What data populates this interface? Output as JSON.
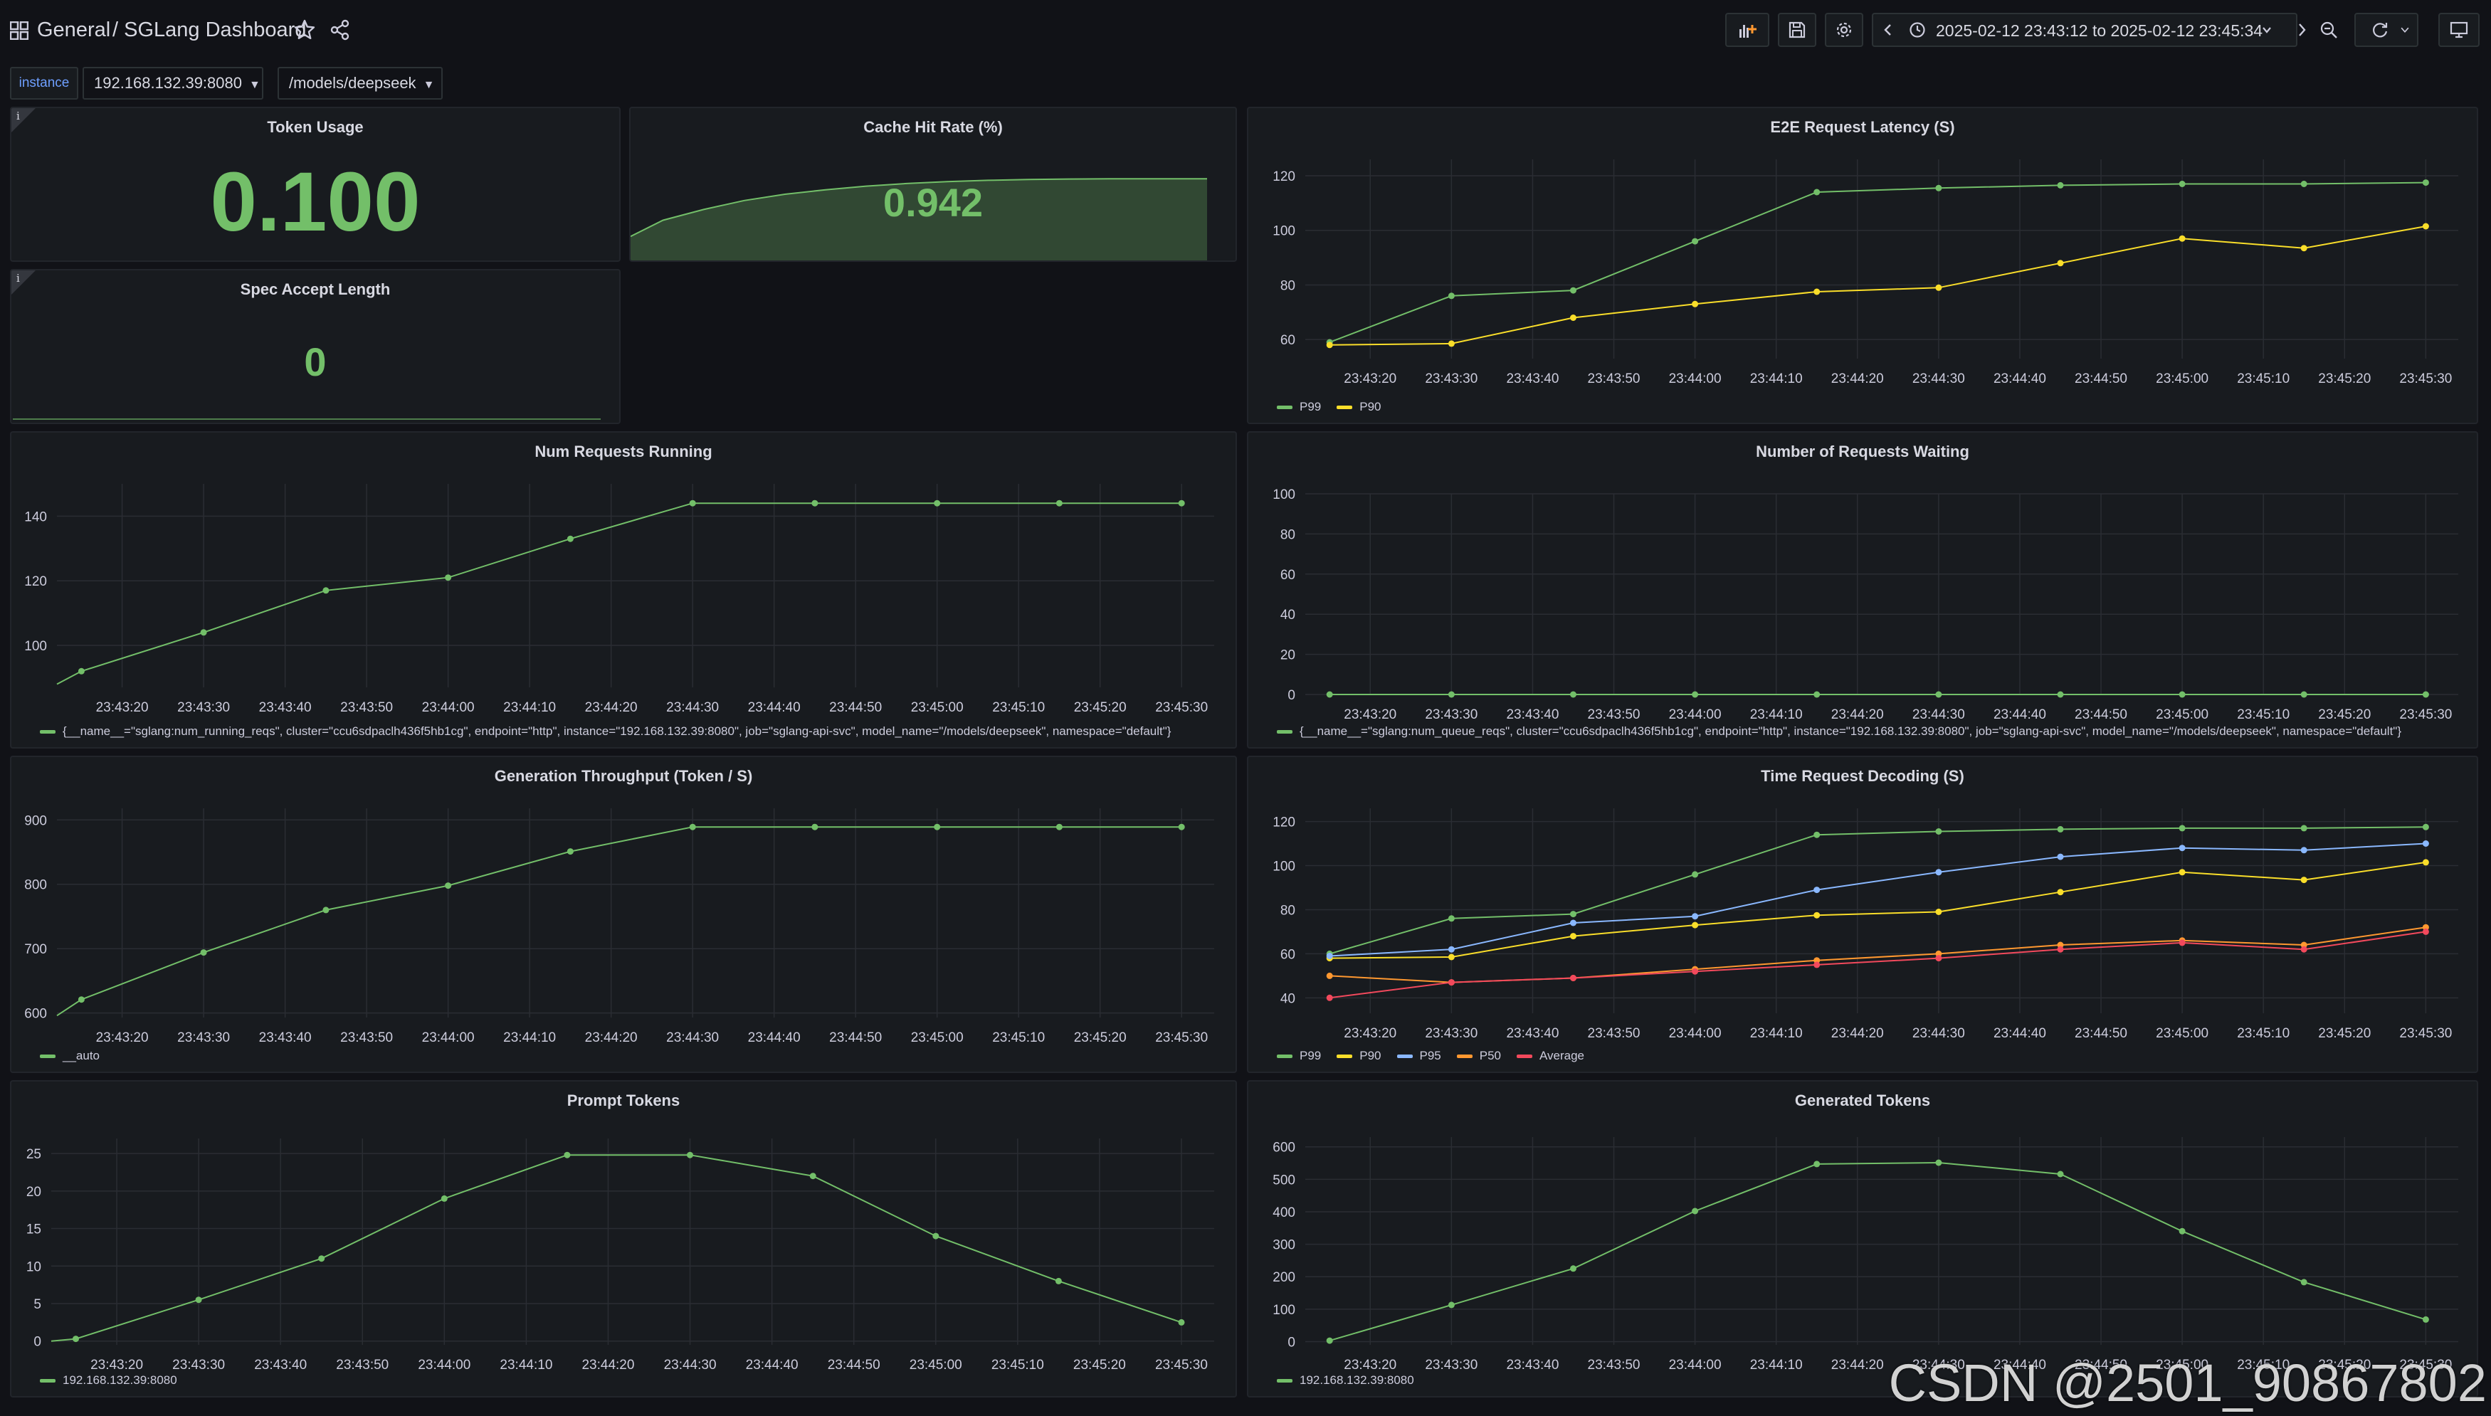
{
  "header": {
    "breadcrumb_folder": "General",
    "breadcrumb_title": "/ SGLang Dashboard",
    "time_range": "2025-02-12 23:43:12 to 2025-02-12 23:45:34"
  },
  "variables": {
    "label": "instance",
    "instance_value": "192.168.132.39:8080",
    "model_value": "/models/deepseek"
  },
  "colors": {
    "green": "#73bf69",
    "yellow": "#fade2a",
    "blue": "#8ab8ff",
    "orange": "#ff9830",
    "red": "#f2495c",
    "grid": "#2a2d33",
    "axis_text": "#ccccdc"
  },
  "panels": {
    "token_usage": {
      "title": "Token Usage",
      "value": "0.100",
      "info": "i"
    },
    "cache_hit_rate": {
      "title": "Cache Hit Rate (%)",
      "value": "0.942"
    },
    "spec_accept_length": {
      "title": "Spec Accept Length",
      "value": "0",
      "info": "i"
    },
    "e2e_latency": {
      "title": "E2E Request Latency (S)"
    },
    "num_running": {
      "title": "Num Requests Running"
    },
    "num_waiting": {
      "title": "Number of Requests Waiting"
    },
    "gen_throughput": {
      "title": "Generation Throughput (Token / S)"
    },
    "time_decoding": {
      "title": "Time Request Decoding (S)"
    },
    "prompt_tokens": {
      "title": "Prompt Tokens"
    },
    "generated_tokens": {
      "title": "Generated Tokens"
    }
  },
  "watermark": "CSDN @2501_90867802",
  "chart_data": [
    {
      "id": "cache_hit_rate",
      "type": "area",
      "x": [
        "23:43:12",
        "23:43:20",
        "23:43:30",
        "23:43:40",
        "23:43:50",
        "23:44:00",
        "23:44:10",
        "23:44:20",
        "23:44:30",
        "23:44:40",
        "23:44:50",
        "23:45:00",
        "23:45:10",
        "23:45:20",
        "23:45:30",
        "23:45:34"
      ],
      "series": [
        {
          "values": [
            0.3,
            0.48,
            0.6,
            0.7,
            0.77,
            0.82,
            0.86,
            0.89,
            0.91,
            0.925,
            0.935,
            0.94,
            0.942,
            0.942,
            0.942,
            0.942
          ],
          "color": "#73bf69"
        }
      ],
      "ylim": [
        0,
        1.0
      ]
    },
    {
      "id": "e2e_latency",
      "type": "line",
      "x_ticks": [
        "23:43:20",
        "23:43:30",
        "23:43:40",
        "23:43:50",
        "23:44:00",
        "23:44:10",
        "23:44:20",
        "23:44:30",
        "23:44:40",
        "23:44:50",
        "23:45:00",
        "23:45:10",
        "23:45:20",
        "23:45:30"
      ],
      "y_ticks": [
        60,
        80,
        100,
        120
      ],
      "ylim": [
        53,
        126
      ],
      "x": [
        "23:43:15",
        "23:43:30",
        "23:43:45",
        "23:44:00",
        "23:44:15",
        "23:44:30",
        "23:44:45",
        "23:45:00",
        "23:45:15",
        "23:45:30"
      ],
      "series": [
        {
          "name": "P99",
          "color": "#73bf69",
          "values": [
            59,
            76,
            78,
            96,
            114,
            115.5,
            116.5,
            117,
            117,
            117.5
          ]
        },
        {
          "name": "P90",
          "color": "#fade2a",
          "values": [
            58,
            58.5,
            68,
            73,
            77.5,
            79,
            88,
            97,
            93.5,
            101.5
          ]
        }
      ]
    },
    {
      "id": "num_running",
      "type": "line",
      "x_ticks": [
        "23:43:20",
        "23:43:30",
        "23:43:40",
        "23:43:50",
        "23:44:00",
        "23:44:10",
        "23:44:20",
        "23:44:30",
        "23:44:40",
        "23:44:50",
        "23:45:00",
        "23:45:10",
        "23:45:20",
        "23:45:30"
      ],
      "y_ticks": [
        100,
        120,
        140
      ],
      "ylim": [
        87,
        150
      ],
      "x": [
        "23:43:12",
        "23:43:15",
        "23:43:30",
        "23:43:45",
        "23:44:00",
        "23:44:15",
        "23:44:30",
        "23:44:45",
        "23:45:00",
        "23:45:15",
        "23:45:30"
      ],
      "series": [
        {
          "name": "{__name__=\"sglang:num_running_reqs\", cluster=\"ccu6sdpaclh436f5hb1cg\", endpoint=\"http\", instance=\"192.168.132.39:8080\", job=\"sglang-api-svc\", model_name=\"/models/deepseek\", namespace=\"default\"}",
          "color": "#73bf69",
          "values": [
            88,
            92,
            104,
            117,
            121,
            133,
            144,
            144,
            144,
            144,
            144
          ]
        }
      ]
    },
    {
      "id": "num_waiting",
      "type": "line",
      "x_ticks": [
        "23:43:20",
        "23:43:30",
        "23:43:40",
        "23:43:50",
        "23:44:00",
        "23:44:10",
        "23:44:20",
        "23:44:30",
        "23:44:40",
        "23:44:50",
        "23:45:00",
        "23:45:10",
        "23:45:20",
        "23:45:30"
      ],
      "y_ticks": [
        0,
        20,
        40,
        60,
        80,
        100
      ],
      "ylim": [
        0,
        100
      ],
      "x": [
        "23:43:15",
        "23:43:30",
        "23:43:45",
        "23:44:00",
        "23:44:15",
        "23:44:30",
        "23:44:45",
        "23:45:00",
        "23:45:15",
        "23:45:30"
      ],
      "series": [
        {
          "name": "{__name__=\"sglang:num_queue_reqs\", cluster=\"ccu6sdpaclh436f5hb1cg\", endpoint=\"http\", instance=\"192.168.132.39:8080\", job=\"sglang-api-svc\", model_name=\"/models/deepseek\", namespace=\"default\"}",
          "color": "#73bf69",
          "values": [
            0,
            0,
            0,
            0,
            0,
            0,
            0,
            0,
            0,
            0
          ]
        }
      ]
    },
    {
      "id": "gen_throughput",
      "type": "line",
      "x_ticks": [
        "23:43:20",
        "23:43:30",
        "23:43:40",
        "23:43:50",
        "23:44:00",
        "23:44:10",
        "23:44:20",
        "23:44:30",
        "23:44:40",
        "23:44:50",
        "23:45:00",
        "23:45:10",
        "23:45:20",
        "23:45:30"
      ],
      "y_ticks": [
        600,
        700,
        800,
        900
      ],
      "ylim": [
        593,
        918
      ],
      "x": [
        "23:43:12",
        "23:43:15",
        "23:43:30",
        "23:43:45",
        "23:44:00",
        "23:44:15",
        "23:44:30",
        "23:44:45",
        "23:45:00",
        "23:45:15",
        "23:45:30"
      ],
      "series": [
        {
          "name": "__auto",
          "color": "#73bf69",
          "values": [
            596,
            621,
            694,
            760,
            798,
            851,
            889,
            889,
            889,
            889,
            889
          ]
        }
      ]
    },
    {
      "id": "time_decoding",
      "type": "line",
      "x_ticks": [
        "23:43:20",
        "23:43:30",
        "23:43:40",
        "23:43:50",
        "23:44:00",
        "23:44:10",
        "23:44:20",
        "23:44:30",
        "23:44:40",
        "23:44:50",
        "23:45:00",
        "23:45:10",
        "23:45:20",
        "23:45:30"
      ],
      "y_ticks": [
        40,
        60,
        80,
        100,
        120
      ],
      "ylim": [
        33,
        126
      ],
      "x": [
        "23:43:15",
        "23:43:30",
        "23:43:45",
        "23:44:00",
        "23:44:15",
        "23:44:30",
        "23:44:45",
        "23:45:00",
        "23:45:15",
        "23:45:30"
      ],
      "series": [
        {
          "name": "P99",
          "color": "#73bf69",
          "values": [
            60,
            76,
            78,
            96,
            114,
            115.5,
            116.5,
            117,
            117,
            117.5
          ]
        },
        {
          "name": "P90",
          "color": "#fade2a",
          "values": [
            58,
            58.5,
            68,
            73,
            77.5,
            79,
            88,
            97,
            93.5,
            101.5
          ]
        },
        {
          "name": "P95",
          "color": "#8ab8ff",
          "values": [
            59,
            62,
            74,
            77,
            89,
            97,
            104,
            108,
            107,
            110
          ]
        },
        {
          "name": "P50",
          "color": "#ff9830",
          "values": [
            50,
            47,
            49,
            53,
            57,
            60,
            64,
            66,
            64,
            72
          ]
        },
        {
          "name": "Average",
          "color": "#f2495c",
          "values": [
            40,
            47,
            49,
            52,
            55,
            58,
            62,
            65,
            62,
            70
          ]
        }
      ]
    },
    {
      "id": "prompt_tokens",
      "type": "line",
      "x_ticks": [
        "23:43:20",
        "23:43:30",
        "23:43:40",
        "23:43:50",
        "23:44:00",
        "23:44:10",
        "23:44:20",
        "23:44:30",
        "23:44:40",
        "23:44:50",
        "23:45:00",
        "23:45:10",
        "23:45:20",
        "23:45:30"
      ],
      "y_ticks": [
        0,
        5,
        10,
        15,
        20,
        25
      ],
      "ylim": [
        -0.5,
        27
      ],
      "x": [
        "23:43:12",
        "23:43:15",
        "23:43:30",
        "23:43:45",
        "23:44:00",
        "23:44:15",
        "23:44:30",
        "23:44:45",
        "23:45:00",
        "23:45:15",
        "23:45:30"
      ],
      "series": [
        {
          "name": "192.168.132.39:8080",
          "color": "#73bf69",
          "values": [
            0,
            0.3,
            5.5,
            11,
            19,
            24.8,
            24.8,
            22,
            14,
            8,
            2.5
          ]
        }
      ]
    },
    {
      "id": "generated_tokens",
      "type": "line",
      "x_ticks": [
        "23:43:20",
        "23:43:30",
        "23:43:40",
        "23:43:50",
        "23:44:00",
        "23:44:10",
        "23:44:20",
        "23:44:30",
        "23:44:40",
        "23:44:50",
        "23:45:00",
        "23:45:10",
        "23:45:20",
        "23:45:30"
      ],
      "y_ticks": [
        0,
        100,
        200,
        300,
        400,
        500,
        600
      ],
      "ylim": [
        -10,
        630
      ],
      "x": [
        "23:43:15",
        "23:43:30",
        "23:43:45",
        "23:44:00",
        "23:44:15",
        "23:44:30",
        "23:44:45",
        "23:45:00",
        "23:45:15",
        "23:45:30"
      ],
      "series": [
        {
          "name": "192.168.132.39:8080",
          "color": "#73bf69",
          "values": [
            3,
            113,
            225,
            402,
            547,
            551,
            516,
            340,
            183,
            68
          ]
        }
      ]
    }
  ]
}
